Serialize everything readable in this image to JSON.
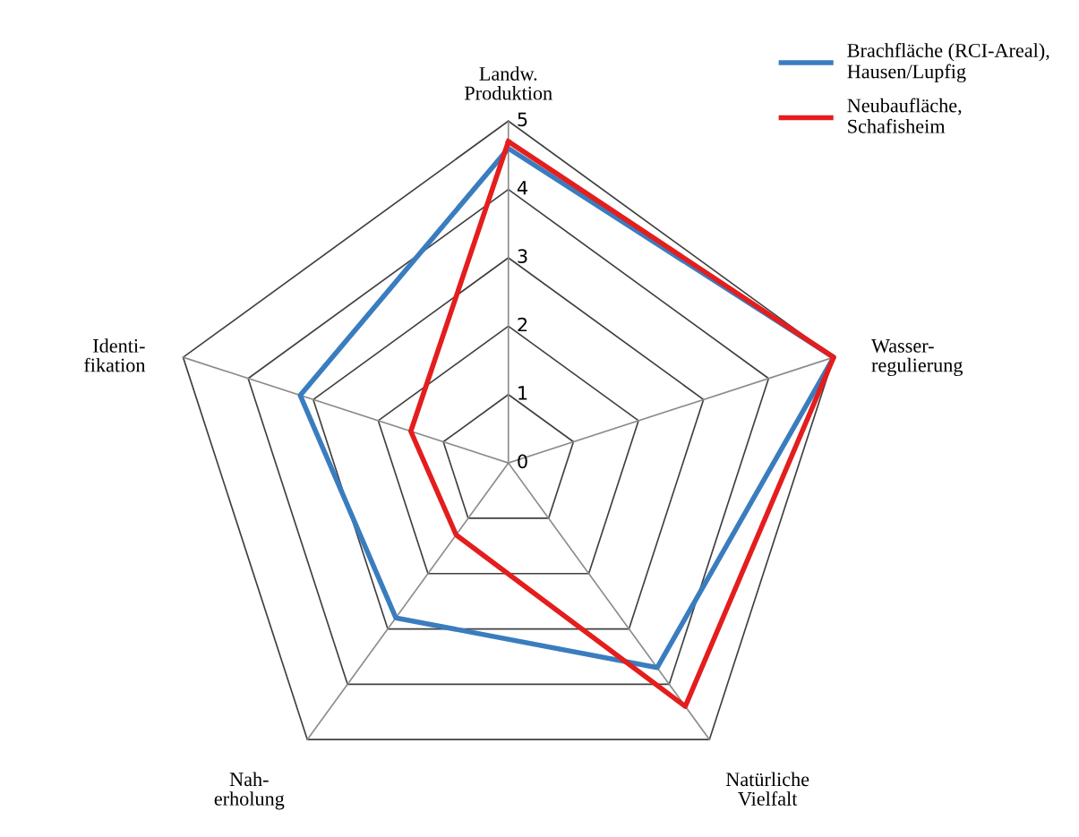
{
  "chart_data": {
    "type": "radar",
    "categories": [
      "Landw.\nProduktion",
      "Wasser-\nregulierung",
      "Natürliche\nVielfalt",
      "Nah-\nerholung",
      "Identi-\nfikation"
    ],
    "series": [
      {
        "name": "Brachfläche (RCI-Areal),\nHausen/Lupfig",
        "color": "#3a7dbf",
        "values": [
          4.6,
          5,
          3.7,
          2.8,
          3.2
        ]
      },
      {
        "name": "Neubaufläche,\nSchafisheim",
        "color": "#e41d1d",
        "values": [
          4.7,
          5,
          4.4,
          1.3,
          1.5
        ]
      }
    ],
    "ylim": [
      0,
      5
    ],
    "yticks": [
      0,
      1,
      2,
      3,
      4,
      5
    ],
    "grid": true,
    "legend": "top right"
  }
}
